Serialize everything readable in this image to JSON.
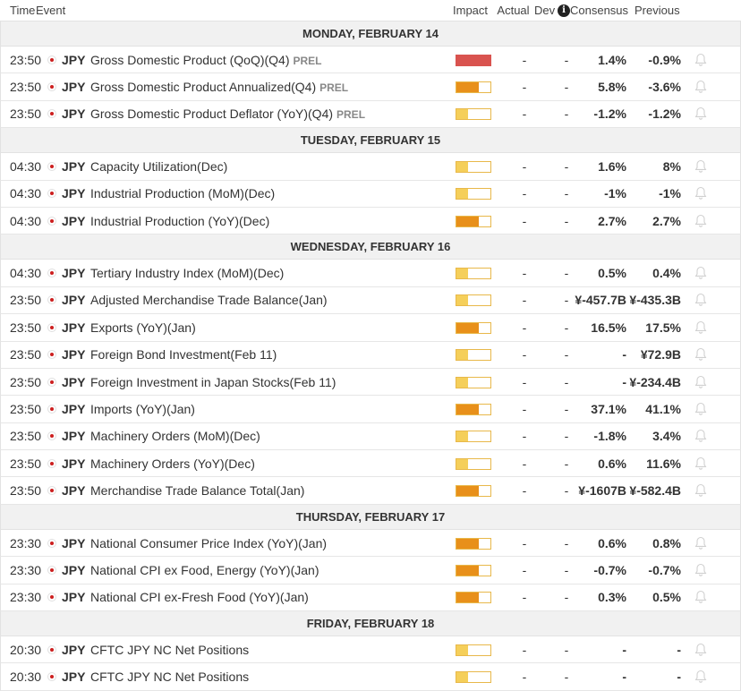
{
  "header": {
    "time": "Time",
    "event": "Event",
    "impact": "Impact",
    "actual": "Actual",
    "dev": "Dev",
    "info_glyph": "i",
    "consensus": "Consensus",
    "previous": "Previous"
  },
  "colors": {
    "high": "#d9534f",
    "medium": "#e8901a",
    "low": "#f5cf5a",
    "border": "#e8b84a"
  },
  "days": [
    {
      "label": "MONDAY, FEBRUARY 14",
      "events": [
        {
          "time": "23:50",
          "currency": "JPY",
          "name": "Gross Domestic Product (QoQ)(Q4)",
          "tag": "PREL",
          "impact": "high",
          "impact_level": 1.0,
          "actual": "-",
          "dev": "-",
          "consensus": "1.4%",
          "previous": "-0.9%"
        },
        {
          "time": "23:50",
          "currency": "JPY",
          "name": "Gross Domestic Product Annualized(Q4)",
          "tag": "PREL",
          "impact": "medium",
          "impact_level": 0.66,
          "actual": "-",
          "dev": "-",
          "consensus": "5.8%",
          "previous": "-3.6%"
        },
        {
          "time": "23:50",
          "currency": "JPY",
          "name": "Gross Domestic Product Deflator (YoY)(Q4)",
          "tag": "PREL",
          "impact": "low",
          "impact_level": 0.33,
          "actual": "-",
          "dev": "-",
          "consensus": "-1.2%",
          "previous": "-1.2%"
        }
      ]
    },
    {
      "label": "TUESDAY, FEBRUARY 15",
      "events": [
        {
          "time": "04:30",
          "currency": "JPY",
          "name": "Capacity Utilization(Dec)",
          "tag": "",
          "impact": "low",
          "impact_level": 0.33,
          "actual": "-",
          "dev": "-",
          "consensus": "1.6%",
          "previous": "8%"
        },
        {
          "time": "04:30",
          "currency": "JPY",
          "name": "Industrial Production (MoM)(Dec)",
          "tag": "",
          "impact": "low",
          "impact_level": 0.33,
          "actual": "-",
          "dev": "-",
          "consensus": "-1%",
          "previous": "-1%"
        },
        {
          "time": "04:30",
          "currency": "JPY",
          "name": "Industrial Production (YoY)(Dec)",
          "tag": "",
          "impact": "medium",
          "impact_level": 0.66,
          "actual": "-",
          "dev": "-",
          "consensus": "2.7%",
          "previous": "2.7%"
        }
      ]
    },
    {
      "label": "WEDNESDAY, FEBRUARY 16",
      "events": [
        {
          "time": "04:30",
          "currency": "JPY",
          "name": "Tertiary Industry Index (MoM)(Dec)",
          "tag": "",
          "impact": "low",
          "impact_level": 0.33,
          "actual": "-",
          "dev": "-",
          "consensus": "0.5%",
          "previous": "0.4%"
        },
        {
          "time": "23:50",
          "currency": "JPY",
          "name": "Adjusted Merchandise Trade Balance(Jan)",
          "tag": "",
          "impact": "low",
          "impact_level": 0.33,
          "actual": "-",
          "dev": "-",
          "consensus": "¥-457.7B",
          "previous": "¥-435.3B"
        },
        {
          "time": "23:50",
          "currency": "JPY",
          "name": "Exports (YoY)(Jan)",
          "tag": "",
          "impact": "medium",
          "impact_level": 0.66,
          "actual": "-",
          "dev": "-",
          "consensus": "16.5%",
          "previous": "17.5%"
        },
        {
          "time": "23:50",
          "currency": "JPY",
          "name": "Foreign Bond Investment(Feb 11)",
          "tag": "",
          "impact": "low",
          "impact_level": 0.33,
          "actual": "-",
          "dev": "-",
          "consensus": "-",
          "previous": "¥72.9B"
        },
        {
          "time": "23:50",
          "currency": "JPY",
          "name": "Foreign Investment in Japan Stocks(Feb 11)",
          "tag": "",
          "impact": "low",
          "impact_level": 0.33,
          "actual": "-",
          "dev": "-",
          "consensus": "-",
          "previous": "¥-234.4B"
        },
        {
          "time": "23:50",
          "currency": "JPY",
          "name": "Imports (YoY)(Jan)",
          "tag": "",
          "impact": "medium",
          "impact_level": 0.66,
          "actual": "-",
          "dev": "-",
          "consensus": "37.1%",
          "previous": "41.1%"
        },
        {
          "time": "23:50",
          "currency": "JPY",
          "name": "Machinery Orders (MoM)(Dec)",
          "tag": "",
          "impact": "low",
          "impact_level": 0.33,
          "actual": "-",
          "dev": "-",
          "consensus": "-1.8%",
          "previous": "3.4%"
        },
        {
          "time": "23:50",
          "currency": "JPY",
          "name": "Machinery Orders (YoY)(Dec)",
          "tag": "",
          "impact": "low",
          "impact_level": 0.33,
          "actual": "-",
          "dev": "-",
          "consensus": "0.6%",
          "previous": "11.6%"
        },
        {
          "time": "23:50",
          "currency": "JPY",
          "name": "Merchandise Trade Balance Total(Jan)",
          "tag": "",
          "impact": "medium",
          "impact_level": 0.66,
          "actual": "-",
          "dev": "-",
          "consensus": "¥-1607B",
          "previous": "¥-582.4B"
        }
      ]
    },
    {
      "label": "THURSDAY, FEBRUARY 17",
      "events": [
        {
          "time": "23:30",
          "currency": "JPY",
          "name": "National Consumer Price Index (YoY)(Jan)",
          "tag": "",
          "impact": "medium",
          "impact_level": 0.66,
          "actual": "-",
          "dev": "-",
          "consensus": "0.6%",
          "previous": "0.8%"
        },
        {
          "time": "23:30",
          "currency": "JPY",
          "name": "National CPI ex Food, Energy (YoY)(Jan)",
          "tag": "",
          "impact": "medium",
          "impact_level": 0.66,
          "actual": "-",
          "dev": "-",
          "consensus": "-0.7%",
          "previous": "-0.7%"
        },
        {
          "time": "23:30",
          "currency": "JPY",
          "name": "National CPI ex-Fresh Food (YoY)(Jan)",
          "tag": "",
          "impact": "medium",
          "impact_level": 0.66,
          "actual": "-",
          "dev": "-",
          "consensus": "0.3%",
          "previous": "0.5%"
        }
      ]
    },
    {
      "label": "FRIDAY, FEBRUARY 18",
      "events": [
        {
          "time": "20:30",
          "currency": "JPY",
          "name": "CFTC JPY NC Net Positions",
          "tag": "",
          "impact": "low",
          "impact_level": 0.33,
          "actual": "-",
          "dev": "-",
          "consensus": "-",
          "previous": "-"
        },
        {
          "time": "20:30",
          "currency": "JPY",
          "name": "CFTC JPY NC Net Positions",
          "tag": "",
          "impact": "low",
          "impact_level": 0.33,
          "actual": "-",
          "dev": "-",
          "consensus": "-",
          "previous": "-"
        }
      ]
    }
  ]
}
